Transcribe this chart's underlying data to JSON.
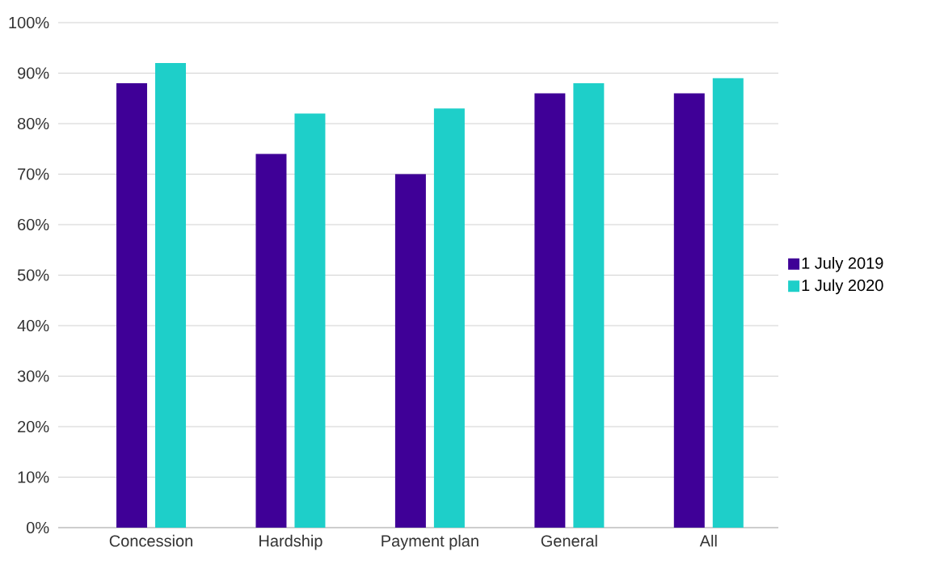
{
  "chart_data": {
    "type": "bar",
    "categories": [
      "Concession",
      "Hardship",
      "Payment plan",
      "General",
      "All"
    ],
    "series": [
      {
        "name": "1 July 2019",
        "color": "#3f0097",
        "values": [
          88,
          74,
          70,
          86,
          86
        ]
      },
      {
        "name": "1 July 2020",
        "color": "#1ecfc9",
        "values": [
          92,
          82,
          83,
          88,
          89
        ]
      }
    ],
    "ylim": [
      0,
      100
    ],
    "yticks": [
      {
        "value": 0,
        "label": "0%"
      },
      {
        "value": 10,
        "label": "10%"
      },
      {
        "value": 20,
        "label": "20%"
      },
      {
        "value": 30,
        "label": "30%"
      },
      {
        "value": 40,
        "label": "40%"
      },
      {
        "value": 50,
        "label": "50%"
      },
      {
        "value": 60,
        "label": "60%"
      },
      {
        "value": 70,
        "label": "70%"
      },
      {
        "value": 80,
        "label": "80%"
      },
      {
        "value": 90,
        "label": "90%"
      },
      {
        "value": 100,
        "label": "100%"
      }
    ],
    "grid": "y",
    "legend": "right"
  }
}
